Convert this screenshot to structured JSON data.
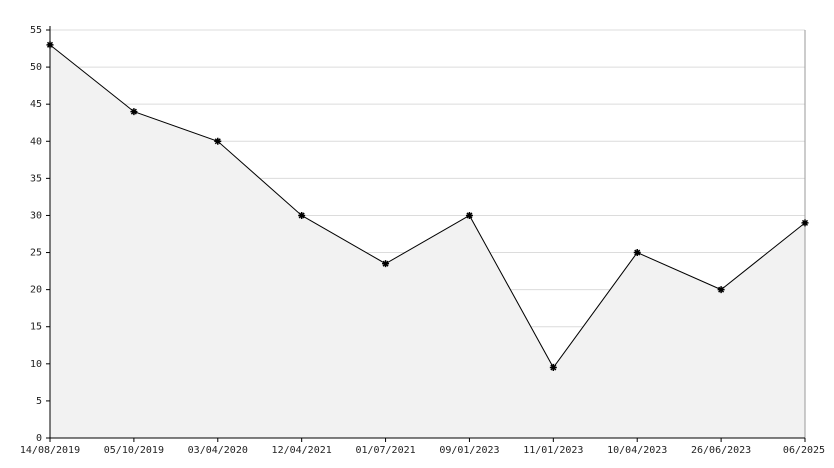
{
  "chart_data": {
    "type": "line",
    "categories": [
      "14/08/2019",
      "05/10/2019",
      "03/04/2020",
      "12/04/2021",
      "01/07/2021",
      "09/01/2023",
      "11/01/2023",
      "10/04/2023",
      "26/06/2023",
      "06/2025"
    ],
    "values": [
      53,
      44,
      40,
      30,
      23.5,
      30,
      9.5,
      25,
      20,
      29
    ],
    "color": "#000000",
    "fill_color": "#f2f2f2",
    "ylim": [
      0,
      55
    ],
    "yticks": [
      0,
      5,
      10,
      15,
      20,
      25,
      30,
      35,
      40,
      45,
      50,
      55
    ],
    "grid": true
  }
}
